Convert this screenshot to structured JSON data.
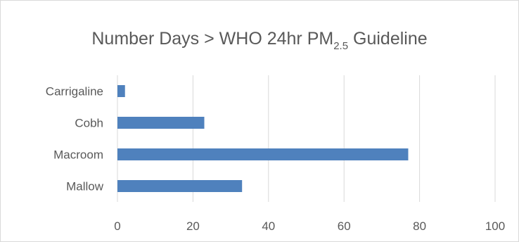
{
  "chart_data": {
    "type": "bar",
    "orientation": "horizontal",
    "title": {
      "main": "Number Days > WHO 24hr PM",
      "subscript": "2.5",
      "suffix": " Guideline"
    },
    "categories": [
      "Carrigaline",
      "Cobh",
      "Macroom",
      "Mallow"
    ],
    "values": [
      2,
      23,
      77,
      33
    ],
    "xlim": [
      0,
      100
    ],
    "xticks": [
      0,
      20,
      40,
      60,
      80,
      100
    ],
    "grid": "vertical",
    "legend": "none",
    "bar_color": "#4f81bd",
    "grid_color": "#d9d9d9",
    "text_color": "#595959"
  }
}
